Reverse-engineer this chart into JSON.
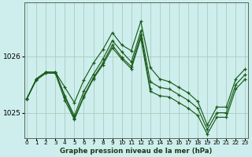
{
  "background_color": "#ceeeed",
  "grid_color": "#aaccbb",
  "line_color": "#1a5c1a",
  "marker": "+",
  "xlim": [
    -0.3,
    23.3
  ],
  "ylim": [
    1024.55,
    1026.95
  ],
  "yticks": [
    1025,
    1026
  ],
  "xtick_labels": [
    "0",
    "1",
    "2",
    "3",
    "4",
    "5",
    "6",
    "7",
    "8",
    "9",
    "10",
    "11",
    "12",
    "13",
    "14",
    "15",
    "16",
    "17",
    "18",
    "19",
    "20",
    "21",
    "22",
    "23"
  ],
  "xlabel": "Graphe pression niveau de la mer (hPa)",
  "series": [
    {
      "x": [
        0,
        1,
        2,
        3,
        4,
        5,
        6,
        7,
        8,
        9,
        10,
        11,
        12,
        13,
        14,
        15,
        16,
        17,
        18,
        19,
        20,
        21,
        22,
        23
      ],
      "y": [
        1025.25,
        1025.6,
        1025.72,
        1025.72,
        1025.45,
        1025.18,
        1025.58,
        1025.88,
        1026.12,
        1026.42,
        1026.2,
        1026.1,
        1026.62,
        1025.8,
        1025.6,
        1025.55,
        1025.45,
        1025.35,
        1025.2,
        1024.78,
        1025.1,
        1025.1,
        1025.6,
        1025.78
      ]
    },
    {
      "x": [
        0,
        1,
        2,
        3,
        4,
        5,
        6,
        7,
        8,
        9,
        10,
        11,
        12,
        13,
        14,
        15,
        16,
        17,
        18,
        19,
        20,
        21,
        22,
        23
      ],
      "y": [
        1025.25,
        1025.6,
        1025.72,
        1025.72,
        1025.3,
        1024.95,
        1025.38,
        1025.68,
        1025.95,
        1026.28,
        1026.08,
        1025.9,
        1026.45,
        1025.55,
        1025.45,
        1025.42,
        1025.32,
        1025.22,
        1025.08,
        1024.7,
        1025.0,
        1025.0,
        1025.5,
        1025.68
      ]
    },
    {
      "x": [
        0,
        1,
        2,
        3,
        4,
        5,
        6,
        7,
        8,
        9,
        10,
        11,
        12,
        13
      ],
      "y": [
        1025.25,
        1025.6,
        1025.72,
        1025.72,
        1025.28,
        1024.9,
        1025.3,
        1025.62,
        1025.88,
        1026.2,
        1025.98,
        1025.82,
        1026.38,
        1025.42
      ]
    },
    {
      "x": [
        0,
        1,
        2,
        3,
        4,
        5,
        6,
        7,
        8,
        9,
        10,
        11,
        12,
        13,
        14,
        15,
        16,
        17,
        18,
        19,
        20,
        21,
        22,
        23
      ],
      "y": [
        1025.25,
        1025.58,
        1025.7,
        1025.7,
        1025.22,
        1024.88,
        1025.28,
        1025.6,
        1025.85,
        1026.15,
        1025.95,
        1025.78,
        1026.32,
        1025.38,
        1025.3,
        1025.28,
        1025.18,
        1025.08,
        1024.95,
        1024.62,
        1024.92,
        1024.92,
        1025.42,
        1025.6
      ]
    }
  ]
}
